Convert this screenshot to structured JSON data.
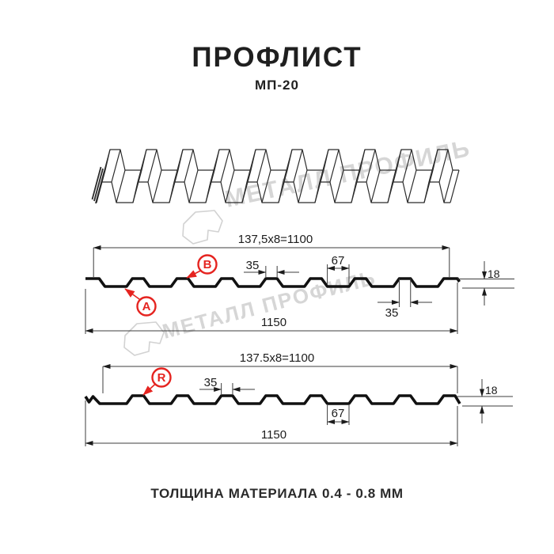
{
  "header": {
    "title": "ПРОФЛИСТ",
    "subtitle": "МП-20"
  },
  "footer": {
    "note": "ТОЛЩИНА МАТЕРИАЛА 0.4 - 0.8 ММ"
  },
  "watermark": {
    "text": "МЕТАЛЛ ПРОФИЛЬ"
  },
  "colors": {
    "accent_red": "#e52420",
    "line": "#111111",
    "watermark_gray": "#d6d6d6"
  },
  "profile_top": {
    "width_label": "137,5x8=1100",
    "overall_label": "1150",
    "rib_top_label": "35",
    "rib_top_label_2": "35",
    "valley_label": "67",
    "height_label": "18",
    "side_a": "A",
    "side_b": "B"
  },
  "profile_bottom": {
    "width_label": "137.5x8=1100",
    "overall_label": "1150",
    "rib_top_label": "35",
    "valley_label": "67",
    "height_label": "18",
    "side_r": "R"
  }
}
